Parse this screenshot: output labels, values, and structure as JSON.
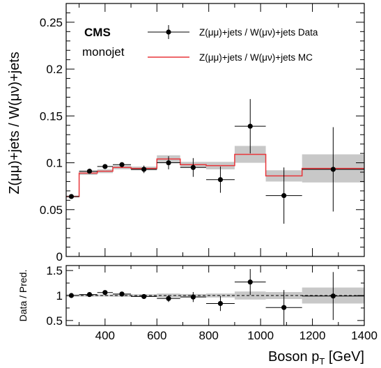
{
  "chart_data": [
    {
      "type": "line",
      "id": "main",
      "labels": {
        "experiment": "CMS",
        "selection": "monojet",
        "ylabel": "Z(μμ)+jets / W(μν)+jets",
        "xlabel": "",
        "legend": [
          {
            "label": "Z(μμ)+jets / W(μν)+jets Data",
            "style": "data"
          },
          {
            "label": "Z(μμ)+jets / W(μν)+jets MC",
            "style": "mc"
          }
        ],
        "legend_position": "top-right"
      },
      "xlim": [
        250,
        1400
      ],
      "ylim": [
        0,
        0.27
      ],
      "x_ticks": [
        400,
        600,
        800,
        1000,
        1200,
        1400
      ],
      "y_ticks": [
        0,
        0.05,
        0.1,
        0.15,
        0.2,
        0.25
      ],
      "y_tick_labels": [
        "0",
        "0.05",
        "0.1",
        "0.15",
        "0.2",
        "0.25"
      ],
      "bin_edges": [
        250,
        300,
        370,
        430,
        500,
        600,
        690,
        790,
        900,
        1020,
        1160,
        1400
      ],
      "mc_values": [
        0.064,
        0.089,
        0.091,
        0.095,
        0.094,
        0.104,
        0.098,
        0.097,
        0.109,
        0.086,
        0.094
      ],
      "mc_unc": [
        0.001,
        0.002,
        0.002,
        0.002,
        0.002,
        0.004,
        0.003,
        0.004,
        0.009,
        0.006,
        0.015
      ],
      "data_x": [
        270,
        340,
        400,
        465,
        550,
        645,
        740,
        845,
        960,
        1090,
        1280
      ],
      "data_y": [
        0.064,
        0.091,
        0.096,
        0.098,
        0.093,
        0.1,
        0.095,
        0.082,
        0.139,
        0.065,
        0.093
      ],
      "data_err": [
        0.002,
        0.002,
        0.002,
        0.002,
        0.004,
        0.007,
        0.01,
        0.014,
        0.029,
        0.03,
        0.045
      ],
      "data_xerr_lo": [
        20,
        40,
        30,
        35,
        50,
        45,
        50,
        55,
        60,
        70,
        120
      ],
      "data_xerr_hi": [
        30,
        30,
        30,
        35,
        50,
        45,
        50,
        55,
        60,
        70,
        120
      ],
      "colors": {
        "mc_line": "#e8353a",
        "band": "#c8c8c8",
        "data": "#000000"
      }
    },
    {
      "type": "line",
      "id": "ratio",
      "labels": {
        "ylabel": "Data / Pred.",
        "xlabel": "Boson p",
        "xlabel_sub": "T",
        "xlabel_unit": " [GeV]"
      },
      "xlim": [
        250,
        1400
      ],
      "ylim": [
        0.4,
        1.6
      ],
      "x_ticks": [
        400,
        600,
        800,
        1000,
        1200,
        1400
      ],
      "x_tick_labels": [
        "400",
        "600",
        "800",
        "1000",
        "1200",
        "1400"
      ],
      "y_ticks": [
        0.5,
        1,
        1.5
      ],
      "y_tick_labels": [
        "0.5",
        "1",
        "1.5"
      ],
      "bin_edges": [
        250,
        300,
        370,
        430,
        500,
        600,
        690,
        790,
        900,
        1020,
        1160,
        1400
      ],
      "band_unc": [
        0.02,
        0.02,
        0.02,
        0.025,
        0.025,
        0.04,
        0.03,
        0.04,
        0.08,
        0.07,
        0.16
      ],
      "data_x": [
        270,
        340,
        400,
        465,
        550,
        645,
        740,
        845,
        960,
        1090,
        1280
      ],
      "ratio": [
        1.0,
        1.02,
        1.06,
        1.03,
        0.98,
        0.94,
        0.97,
        0.84,
        1.27,
        0.76,
        0.99
      ],
      "ratio_err": [
        0.03,
        0.03,
        0.03,
        0.03,
        0.04,
        0.07,
        0.1,
        0.15,
        0.26,
        0.35,
        0.48
      ],
      "reference_line": 1
    }
  ]
}
